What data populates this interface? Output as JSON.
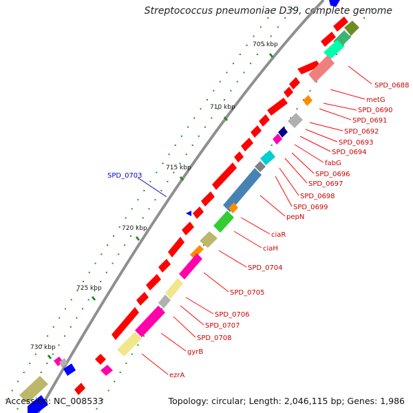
{
  "title": "Streptococcus pneumoniae D39, complete genome",
  "footer": {
    "accession": "Accession: NC_008533",
    "summary": "Topology: circular; Length: 2,046,115 bp; Genes: 1,986"
  },
  "kbp_labels": [
    "705 kbp",
    "710 kbp",
    "715 kbp",
    "720 kbp",
    "725 kbp",
    "730 kbp"
  ],
  "gene_labels_right": [
    "SPD_0688",
    "metG",
    "SPD_0690",
    "SPD_0691",
    "SPD_0692",
    "SPD_0693",
    "SPD_0694",
    "fabG",
    "SPD_0696",
    "SPD_0697",
    "SPD_0698",
    "SPD_0699",
    "pepN",
    "ciaR",
    "ciaH",
    "SPD_0704",
    "SPD_0705",
    "SPD_0706",
    "SPD_0707",
    "SPD_0708",
    "gyrB",
    "ezrA"
  ],
  "gene_labels_left": [
    "SPD_0703"
  ],
  "colors": {
    "cds": "#ff0000",
    "cds_reverse": "#0000ff",
    "label_forward": "#cc0000",
    "label_reverse": "#0000cc",
    "backbone": "#999999",
    "tick": "#228b22"
  },
  "cog_colors": [
    "#f08080",
    "#3cb371",
    "#ff8c00",
    "#00ffaa",
    "#b0b0b0",
    "#00008b",
    "#ff00aa",
    "#f0e68c",
    "#4682b4",
    "#00ced1",
    "#32cd32",
    "#bdb76b",
    "#808080",
    "#6b8e23"
  ]
}
